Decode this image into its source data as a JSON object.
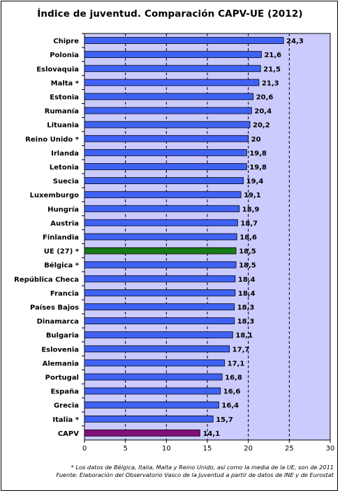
{
  "chart_data": {
    "type": "bar",
    "orientation": "horizontal",
    "title": "Índice de juventud. Comparación CAPV-UE (2012)",
    "categories": [
      "Chipre",
      "Polonia",
      "Eslovaquia",
      "Malta *",
      "Estonia",
      "Rumanía",
      "Lituania",
      "Reino Unido *",
      "Irlanda",
      "Letonia",
      "Suecia",
      "Luxemburgo",
      "Hungría",
      "Austria",
      "Finlandia",
      "UE (27) *",
      "Bélgica *",
      "República Checa",
      "Francia",
      "Países Bajos",
      "Dinamarca",
      "Bulgaria",
      "Eslovenia",
      "Alemania",
      "Portugal",
      "España",
      "Grecia",
      "Italia *",
      "CAPV"
    ],
    "values": [
      24.3,
      21.6,
      21.5,
      21.3,
      20.6,
      20.4,
      20.2,
      20,
      19.8,
      19.8,
      19.4,
      19.1,
      18.9,
      18.7,
      18.6,
      18.5,
      18.5,
      18.4,
      18.4,
      18.3,
      18.3,
      18.1,
      17.7,
      17.1,
      16.8,
      16.6,
      16.4,
      15.7,
      14.1
    ],
    "value_labels": [
      "24,3",
      "21,6",
      "21,5",
      "21,3",
      "20,6",
      "20,4",
      "20,2",
      "20",
      "19,8",
      "19,8",
      "19,4",
      "19,1",
      "18,9",
      "18,7",
      "18,6",
      "18,5",
      "18,5",
      "18,4",
      "18,4",
      "18,3",
      "18,3",
      "18,1",
      "17,7",
      "17,1",
      "16,8",
      "16,6",
      "16,4",
      "15,7",
      "14,1"
    ],
    "xlim": [
      0,
      30
    ],
    "x_ticks": [
      "0",
      "5",
      "10",
      "15",
      "20",
      "25",
      "30"
    ],
    "grid": "vertical dashed",
    "colors": {
      "bar": "#3f62f5",
      "ue": "#187a18",
      "capv": "#80117a",
      "plot_bg": "#cbcbfd"
    }
  },
  "footnotes": [
    "* Los datos de Bélgica, Italia, Malta y Reino Unido, así como la media de la UE, son de 2011",
    "Fuente: Elaboración del Observatorio Vasco de la Juventud a partir de datos de INE y de Eurostat"
  ]
}
